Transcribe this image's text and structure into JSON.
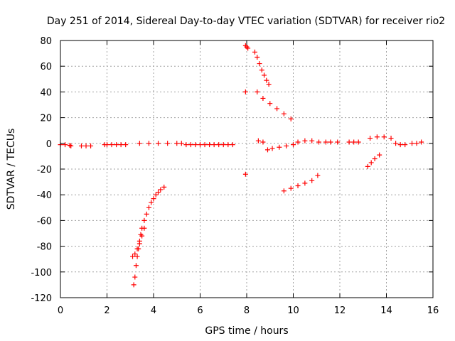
{
  "chart_data": {
    "type": "scatter",
    "title": "Day 251 of 2014, Sidereal Day-to-day VTEC variation (SDTVAR) for receiver rio2",
    "xlabel": "GPS time / hours",
    "ylabel": "SDTVAR / TECUs",
    "xlim": [
      0,
      16
    ],
    "ylim": [
      -120,
      80
    ],
    "xticks": [
      0,
      2,
      4,
      6,
      8,
      10,
      12,
      14,
      16
    ],
    "yticks": [
      80,
      60,
      40,
      20,
      0,
      -20,
      -40,
      -60,
      -80,
      -100,
      -120
    ],
    "grid": true,
    "marker": "+",
    "color": "#ff0000",
    "series": [
      {
        "x": [
          0.0,
          0.2,
          0.4,
          0.45,
          0.9,
          1.1,
          1.3,
          1.9,
          2.0,
          2.2,
          2.4,
          2.6,
          2.8,
          3.4,
          3.8,
          4.2,
          4.6,
          5.0,
          5.2,
          5.4,
          5.6,
          5.8,
          6.0,
          6.2,
          6.4,
          6.6,
          6.8,
          7.0,
          7.2,
          7.4,
          7.95,
          8.0,
          8.05,
          7.95,
          7.95,
          8.35,
          8.45,
          8.55,
          8.65,
          8.75,
          8.85,
          8.95,
          8.45,
          8.7,
          9.0,
          9.3,
          9.6,
          9.9,
          8.5,
          8.7,
          8.9,
          9.1,
          9.4,
          9.7,
          10.0,
          10.2,
          10.5,
          10.8,
          11.1,
          11.4,
          11.6,
          11.9,
          9.6,
          9.9,
          10.2,
          10.5,
          10.8,
          11.05,
          12.4,
          12.6,
          12.8,
          13.3,
          13.6,
          13.9,
          14.2,
          14.4,
          14.6,
          14.8,
          15.1,
          15.3,
          15.5,
          13.2,
          13.35,
          13.5,
          13.7,
          3.15,
          3.2,
          3.25,
          3.3,
          3.35,
          3.4,
          3.45,
          3.5,
          3.6,
          3.7,
          3.8,
          3.9,
          4.0,
          4.1,
          4.2,
          4.3,
          4.45,
          3.1,
          3.2,
          3.3,
          3.4,
          3.5,
          3.6
        ],
        "y": [
          -1,
          -1,
          -1.5,
          -2,
          -2,
          -2,
          -2,
          -1,
          -1,
          -1,
          -1,
          -1,
          -1,
          0,
          0,
          0,
          0,
          0,
          0,
          -1,
          -1,
          -1,
          -1,
          -1,
          -1,
          -1,
          -1,
          -1,
          -1,
          -1,
          76,
          75,
          74,
          40,
          -24,
          71,
          67,
          62,
          57,
          53,
          49,
          46,
          40,
          35,
          31,
          27,
          23,
          19,
          2,
          1,
          -5,
          -4,
          -3,
          -2,
          -1,
          1,
          2,
          2,
          1,
          1,
          1,
          1,
          -37,
          -35,
          -33,
          -31,
          -29,
          -25,
          1,
          1,
          1,
          4,
          5,
          5,
          4,
          0,
          -1,
          -1,
          0,
          0,
          1,
          -18,
          -15,
          -12,
          -9,
          -110,
          -104,
          -95,
          -88,
          -82,
          -76,
          -71,
          -66,
          -60,
          -55,
          -50,
          -46,
          -43,
          -40,
          -38,
          -36,
          -34,
          -88,
          -86,
          -82,
          -78,
          -72,
          -66
        ]
      }
    ]
  }
}
